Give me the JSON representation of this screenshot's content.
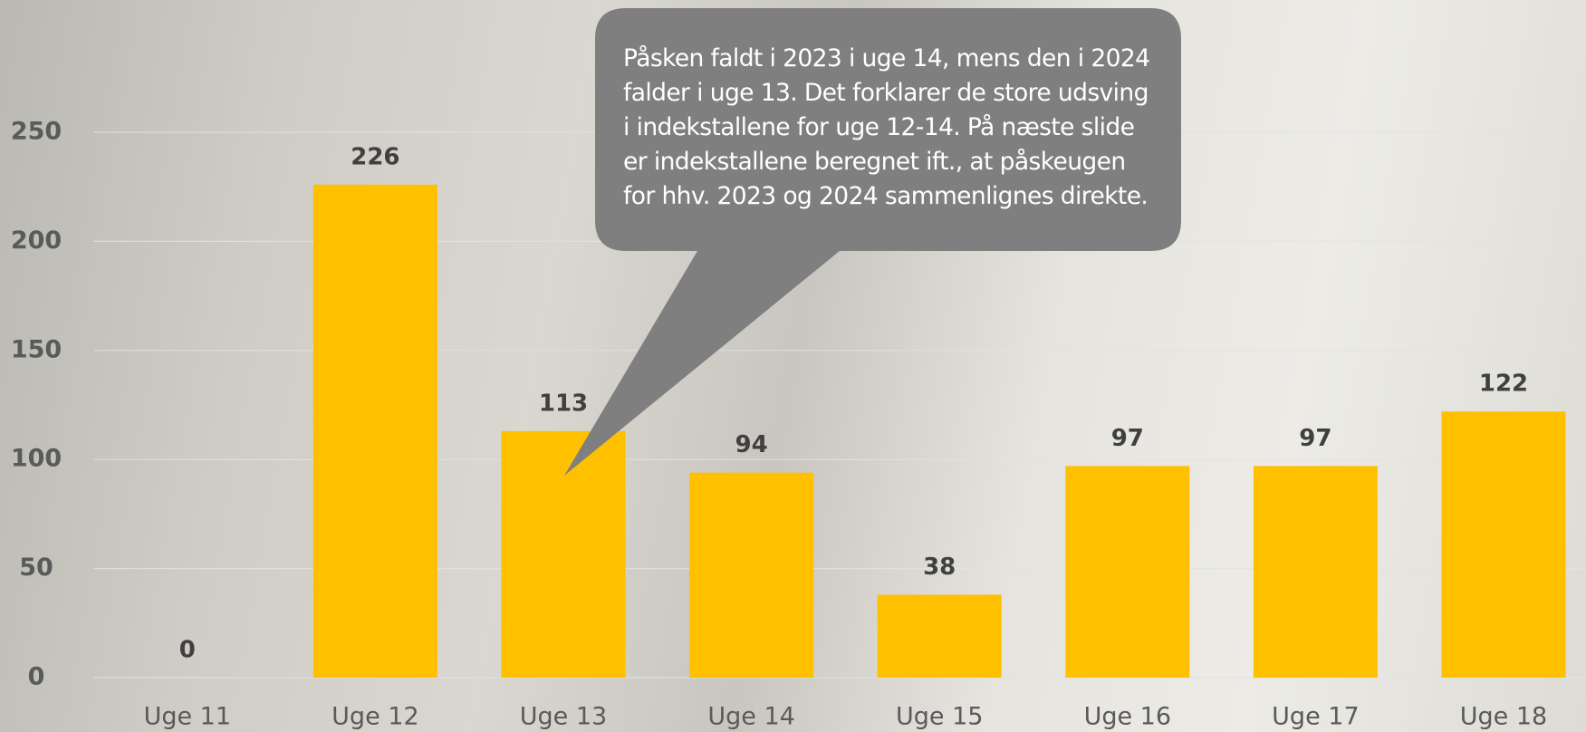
{
  "chart_data": {
    "type": "bar",
    "categories": [
      "Uge 11",
      "Uge 12",
      "Uge 13",
      "Uge 14",
      "Uge 15",
      "Uge 16",
      "Uge 17",
      "Uge 18"
    ],
    "values": [
      0,
      226,
      113,
      94,
      38,
      97,
      97,
      122
    ],
    "color": "#ffc000",
    "ylim": [
      0,
      250
    ],
    "yticks": [
      0,
      50,
      100,
      150,
      200,
      250
    ],
    "grid": true,
    "annotation": "Påsken faldt i 2023 i uge 14, mens den i 2024 falder i uge 13. Det forklarer de store udsving i indekstallene for uge 12-14. På næste slide er indekstallene beregnet ift., at påskeugen for hhv. 2023 og 2024 sammenlignes direkte."
  }
}
